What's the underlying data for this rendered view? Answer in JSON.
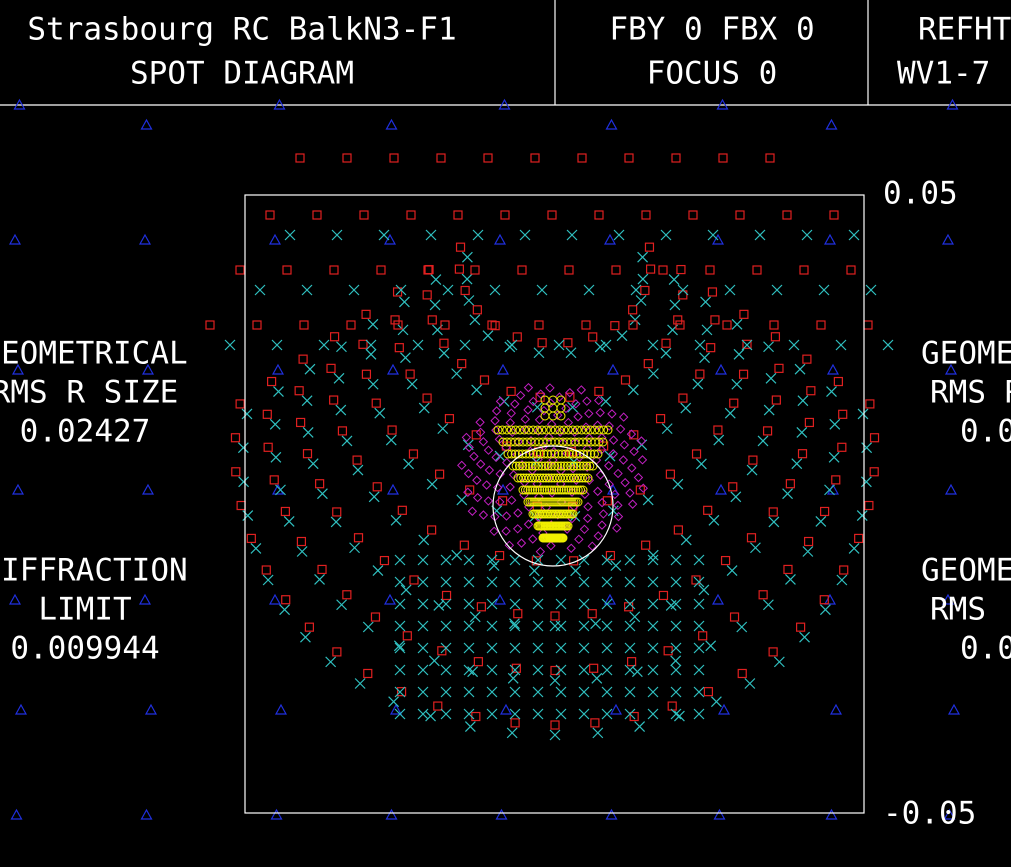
{
  "header": {
    "title": "Strasbourg RC BalkN3-F1",
    "subtitle": "SPOT DIAGRAM",
    "field": "FBY 0 FBX 0",
    "focus": "FOCUS 0",
    "ref": "REFHT",
    "wave": "WV1-7"
  },
  "left_panel": {
    "geo_label": "GEOMETRICAL",
    "geo_metric": "RMS R SIZE",
    "geo_value": "0.02427",
    "diff_label": "DIFFRACTION",
    "diff_metric": "LIMIT",
    "diff_value": "0.009944"
  },
  "right_panel": {
    "geo_label": "GEOMETRICAL",
    "geo_metric": "RMS R SIZE",
    "geo_value": "0.0",
    "geo2_label": "GEOMETRICAL",
    "geo2_metric": "RMS",
    "geo2_value": "0.0"
  },
  "scale": {
    "top": "0.05",
    "bottom": "-0.05"
  }
}
